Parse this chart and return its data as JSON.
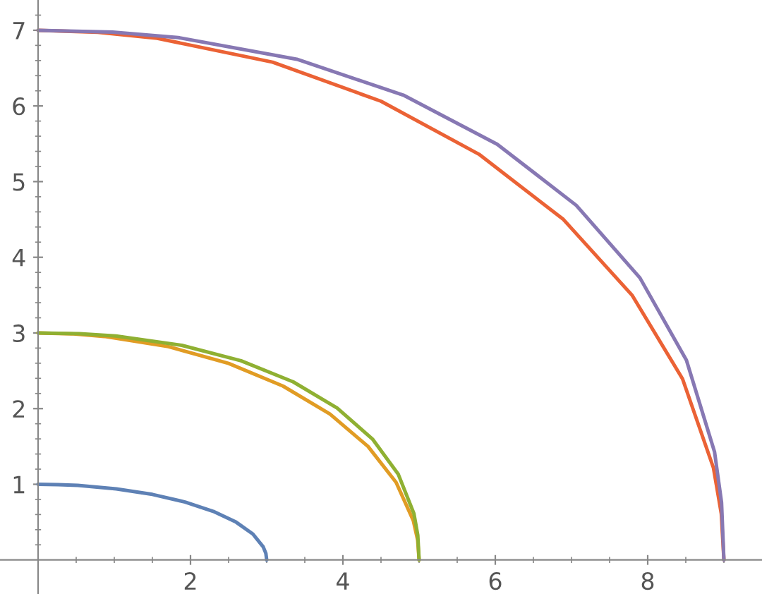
{
  "chart_data": {
    "type": "line",
    "series": [
      {
        "color": "#5e81b5",
        "x": [
          3,
          2.989,
          2.954,
          2.819,
          2.598,
          2.298,
          1.928,
          1.5,
          1.026,
          0.521,
          0.261,
          0
        ],
        "values": [
          0,
          0.087,
          0.174,
          0.342,
          0.5,
          0.643,
          0.766,
          0.866,
          0.94,
          0.985,
          0.996,
          1
        ]
      },
      {
        "color": "#e19c24",
        "x": [
          5,
          4.981,
          4.924,
          4.698,
          4.33,
          3.83,
          3.214,
          2.5,
          1.71,
          0.868,
          0.436,
          0
        ],
        "values": [
          0,
          0.262,
          0.521,
          1.026,
          1.5,
          1.928,
          2.298,
          2.598,
          2.819,
          2.954,
          2.989,
          3
        ]
      },
      {
        "color": "#8fb032",
        "x": [
          5,
          4.983,
          4.932,
          4.727,
          4.388,
          3.924,
          3.347,
          2.663,
          1.886,
          1.021,
          0.544,
          0
        ],
        "values": [
          0,
          0.326,
          0.613,
          1.132,
          1.598,
          2.008,
          2.354,
          2.633,
          2.836,
          2.959,
          2.99,
          3
        ]
      },
      {
        "color": "#eb6235",
        "x": [
          9,
          8.966,
          8.863,
          8.457,
          7.794,
          6.894,
          5.785,
          4.5,
          3.078,
          1.563,
          0.784,
          0
        ],
        "values": [
          0,
          0.61,
          1.216,
          2.394,
          3.5,
          4.5,
          5.362,
          6.062,
          6.578,
          6.894,
          6.973,
          7
        ]
      },
      {
        "color": "#8778b3",
        "x": [
          9,
          8.969,
          8.877,
          8.508,
          7.898,
          7.063,
          6.025,
          4.793,
          3.395,
          1.838,
          0.978,
          0
        ],
        "values": [
          0,
          0.761,
          1.429,
          2.64,
          3.728,
          4.686,
          5.494,
          6.143,
          6.617,
          6.904,
          6.976,
          7
        ]
      }
    ],
    "xlim": [
      -0.5,
      9.5
    ],
    "ylim": [
      -0.45,
      7.4
    ],
    "xticks": [
      {
        "value": 0.5,
        "label": null
      },
      {
        "value": 1,
        "label": null
      },
      {
        "value": 1.5,
        "label": null
      },
      2,
      {
        "value": 2.5,
        "label": null
      },
      {
        "value": 3,
        "label": null
      },
      {
        "value": 3.5,
        "label": null
      },
      4,
      {
        "value": 4.5,
        "label": null
      },
      {
        "value": 5,
        "label": null
      },
      {
        "value": 5.5,
        "label": null
      },
      6,
      {
        "value": 6.5,
        "label": null
      },
      {
        "value": 7,
        "label": null
      },
      {
        "value": 7.5,
        "label": null
      },
      8,
      {
        "value": 8.5,
        "label": null
      },
      {
        "value": 9,
        "label": null
      }
    ],
    "yticks": [
      {
        "value": 0.2,
        "label": null
      },
      {
        "value": 0.4,
        "label": null
      },
      {
        "value": 0.6,
        "label": null
      },
      {
        "value": 0.8,
        "label": null
      },
      1,
      {
        "value": 1.2,
        "label": null
      },
      {
        "value": 1.4,
        "label": null
      },
      {
        "value": 1.6,
        "label": null
      },
      {
        "value": 1.8,
        "label": null
      },
      2,
      {
        "value": 2.2,
        "label": null
      },
      {
        "value": 2.4,
        "label": null
      },
      {
        "value": 2.6,
        "label": null
      },
      {
        "value": 2.8,
        "label": null
      },
      3,
      {
        "value": 3.2,
        "label": null
      },
      {
        "value": 3.4,
        "label": null
      },
      {
        "value": 3.6,
        "label": null
      },
      {
        "value": 3.8,
        "label": null
      },
      4,
      {
        "value": 4.2,
        "label": null
      },
      {
        "value": 4.4,
        "label": null
      },
      {
        "value": 4.6,
        "label": null
      },
      {
        "value": 4.8,
        "label": null
      },
      5,
      {
        "value": 5.2,
        "label": null
      },
      {
        "value": 5.4,
        "label": null
      },
      {
        "value": 5.6,
        "label": null
      },
      {
        "value": 5.8,
        "label": null
      },
      6,
      {
        "value": 6.2,
        "label": null
      },
      {
        "value": 6.4,
        "label": null
      },
      {
        "value": 6.6,
        "label": null
      },
      {
        "value": 6.8,
        "label": null
      },
      7,
      {
        "value": 7.2,
        "label": null
      }
    ]
  }
}
